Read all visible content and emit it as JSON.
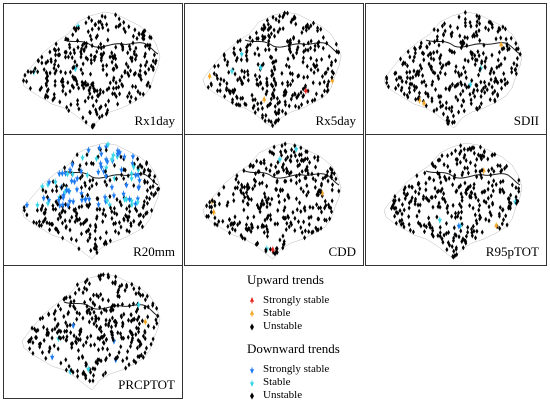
{
  "panels": [
    {
      "id": "rx1day",
      "label": "Rx1day",
      "seed": 11,
      "highlights": {
        "cyan": 3,
        "orange": 0,
        "blue": 0,
        "red": 0
      }
    },
    {
      "id": "rx5day",
      "label": "Rx5day",
      "seed": 23,
      "highlights": {
        "cyan": 3,
        "orange": 3,
        "blue": 0,
        "red": 1
      }
    },
    {
      "id": "sdii",
      "label": "SDII",
      "seed": 37,
      "highlights": {
        "cyan": 2,
        "orange": 3,
        "blue": 0,
        "red": 0
      }
    },
    {
      "id": "r20mm",
      "label": "R20mm",
      "seed": 41,
      "highlights": {
        "cyan": 30,
        "orange": 0,
        "blue": 40,
        "red": 0
      }
    },
    {
      "id": "cdd",
      "label": "CDD",
      "seed": 53,
      "highlights": {
        "cyan": 3,
        "orange": 3,
        "blue": 0,
        "red": 1
      }
    },
    {
      "id": "r95ptot",
      "label": "R95pTOT",
      "seed": 67,
      "highlights": {
        "cyan": 3,
        "orange": 2,
        "blue": 1,
        "red": 0
      }
    },
    {
      "id": "prcptot",
      "label": "PRCPTOT",
      "seed": 79,
      "highlights": {
        "cyan": 4,
        "orange": 1,
        "blue": 4,
        "red": 0
      }
    }
  ],
  "legend": {
    "upward_title": "Upward trends",
    "upward_items": [
      {
        "label": "Strongly stable",
        "color": "#e8231f",
        "dir": "up"
      },
      {
        "label": "Stable",
        "color": "#f5a623",
        "dir": "up"
      },
      {
        "label": "Unstable",
        "color": "#000000",
        "dir": "none"
      }
    ],
    "downward_title": "Downward trends",
    "downward_items": [
      {
        "label": "Strongly stable",
        "color": "#1e7bf0",
        "dir": "down"
      },
      {
        "label": "Stable",
        "color": "#38d6e8",
        "dir": "down"
      },
      {
        "label": "Unstable",
        "color": "#000000",
        "dir": "none"
      }
    ]
  }
}
